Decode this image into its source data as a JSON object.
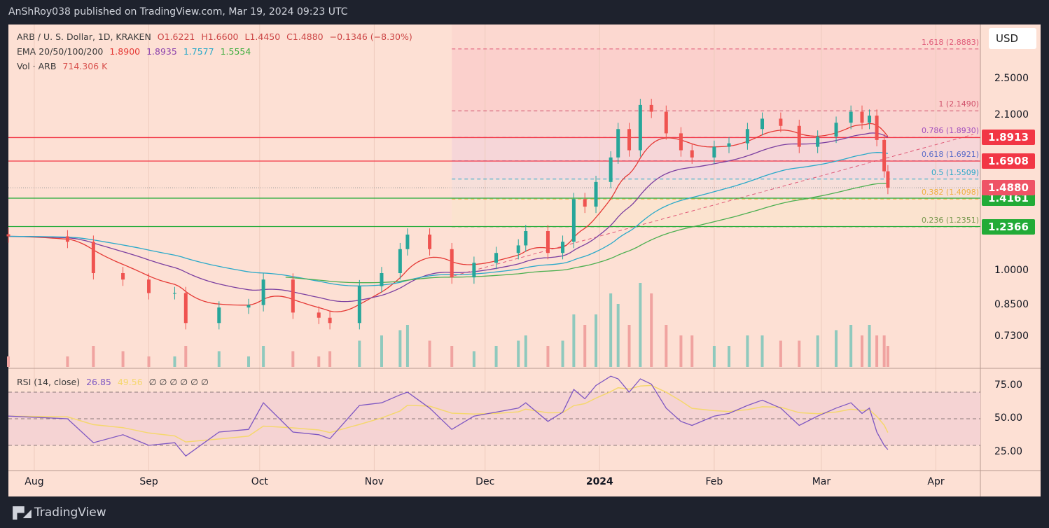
{
  "publisher": "AnShRoy038 published on TradingView.com, Mar 19, 2024 09:23 UTC",
  "legend": {
    "symbol": "ARB / U. S. Dollar, 1D, KRAKEN",
    "open": "O1.6221",
    "high": "H1.6600",
    "low": "L1.4450",
    "close": "C1.4880",
    "change": "−0.1346 (−8.30%)",
    "ema_label": "EMA 20/50/100/200",
    "ema20": "1.8900",
    "ema50": "1.8935",
    "ema100": "1.7577",
    "ema200": "1.5554",
    "vol_label": "Vol · ARB",
    "vol_value": "714.306 K",
    "rsi_label": "RSI (14, close)",
    "rsi_value": "26.85",
    "rsi_ma": "49.56",
    "rsi_extra": "∅ ∅ ∅ ∅ ∅ ∅"
  },
  "currency": "USD",
  "footer": {
    "logo": "TV",
    "brand": "TradingView"
  },
  "colors": {
    "up": "#26a69a",
    "down": "#ef5350",
    "ema20": "#e53935",
    "ema50": "#7b3fa0",
    "ema100": "#29a9c9",
    "ema200": "#4caf50",
    "rsi": "#7e57c2",
    "rsi_ma": "#f5d76e"
  },
  "chart_data": {
    "type": "candlestick",
    "scale": "log",
    "ylim": [
      0.66,
      3.1
    ],
    "yticks": [
      "2.5000",
      "2.1000",
      "1.0000",
      "0.8500",
      "0.7300"
    ],
    "ytick_values": [
      2.5,
      2.1,
      1.0,
      0.85,
      0.73
    ],
    "xticks": [
      "Aug",
      "Sep",
      "Oct",
      "Nov",
      "Dec",
      "2024",
      "Feb",
      "Mar",
      "Apr"
    ],
    "xtick_dates": [
      "2023-08-01",
      "2023-09-01",
      "2023-10-01",
      "2023-11-01",
      "2023-12-01",
      "2024-01-01",
      "2024-02-01",
      "2024-03-01",
      "2024-04-01"
    ],
    "dates": [
      "2023-07-25",
      "2023-08-10",
      "2023-08-17",
      "2023-08-25",
      "2023-09-01",
      "2023-09-08",
      "2023-09-11",
      "2023-09-20",
      "2023-09-28",
      "2023-10-02",
      "2023-10-10",
      "2023-10-17",
      "2023-10-20",
      "2023-10-28",
      "2023-11-03",
      "2023-11-08",
      "2023-11-10",
      "2023-11-16",
      "2023-11-22",
      "2023-11-28",
      "2023-12-04",
      "2023-12-10",
      "2023-12-12",
      "2023-12-18",
      "2023-12-22",
      "2023-12-25",
      "2023-12-28",
      "2023-12-31",
      "2024-01-04",
      "2024-01-06",
      "2024-01-09",
      "2024-01-12",
      "2024-01-15",
      "2024-01-19",
      "2024-01-23",
      "2024-01-26",
      "2024-02-01",
      "2024-02-05",
      "2024-02-10",
      "2024-02-14",
      "2024-02-19",
      "2024-02-24",
      "2024-02-29",
      "2024-03-05",
      "2024-03-09",
      "2024-03-12",
      "2024-03-14",
      "2024-03-16",
      "2024-03-18",
      "2024-03-19"
    ],
    "close": [
      1.18,
      1.15,
      0.99,
      0.96,
      0.9,
      0.9,
      0.78,
      0.84,
      0.85,
      0.96,
      0.82,
      0.8,
      0.78,
      0.93,
      0.99,
      1.11,
      1.19,
      1.11,
      0.97,
      1.04,
      1.09,
      1.13,
      1.21,
      1.09,
      1.15,
      1.41,
      1.36,
      1.53,
      1.72,
      1.97,
      1.78,
      2.21,
      2.14,
      1.93,
      1.78,
      1.72,
      1.81,
      1.84,
      1.97,
      2.07,
      2.0,
      1.81,
      1.9,
      2.03,
      2.14,
      2.03,
      2.1,
      1.87,
      1.61,
      1.488
    ],
    "volume": [
      1,
      1,
      2,
      1.5,
      1,
      1,
      2,
      1.5,
      1,
      2,
      1.5,
      1,
      1.5,
      2.5,
      3,
      3.5,
      4,
      2.5,
      2,
      1.5,
      2,
      2.5,
      3,
      2,
      2.5,
      5,
      4,
      5,
      7,
      6,
      4,
      8,
      7,
      4,
      3,
      3,
      2,
      2,
      3,
      3,
      2.5,
      2.5,
      3,
      3.5,
      4,
      3,
      4,
      3,
      3,
      2
    ],
    "rsi": [
      52,
      50,
      32,
      38,
      30,
      32,
      22,
      40,
      42,
      62,
      40,
      38,
      35,
      60,
      62,
      68,
      70,
      58,
      42,
      52,
      55,
      58,
      62,
      48,
      55,
      72,
      65,
      75,
      82,
      80,
      70,
      80,
      76,
      58,
      48,
      45,
      52,
      54,
      60,
      64,
      58,
      45,
      52,
      58,
      62,
      54,
      58,
      40,
      30,
      26.85
    ],
    "rsi_yticks": [
      "75.00",
      "50.00",
      "25.00"
    ],
    "horizontal_levels": [
      {
        "value": 1.8913,
        "label": "1.8913",
        "color": "#f23645"
      },
      {
        "value": 1.6908,
        "label": "1.6908",
        "color": "#f23645"
      },
      {
        "value": 1.4161,
        "label": "1.4161",
        "color": "#22ab37"
      },
      {
        "value": 1.2366,
        "label": "1.2366",
        "color": "#22ab37"
      }
    ],
    "last_price": {
      "value": 1.488,
      "label": "1.4880",
      "color": "#ef5366"
    },
    "fib_start_date": "2023-11-22",
    "fib_levels": [
      {
        "ratio": "1.618",
        "value": 2.8883,
        "label": "1.618 (2.8883)",
        "color": "#e05a78"
      },
      {
        "ratio": "1",
        "value": 2.149,
        "label": "1 (2.1490)",
        "color": "#d0506a"
      },
      {
        "ratio": "0.786",
        "value": 1.893,
        "label": "0.786 (1.8930)",
        "color": "#a34fbf"
      },
      {
        "ratio": "0.618",
        "value": 1.6921,
        "label": "0.618 (1.6921)",
        "color": "#5a6cc8"
      },
      {
        "ratio": "0.5",
        "value": 1.5509,
        "label": "0.5 (1.5509)",
        "color": "#2aa8c8"
      },
      {
        "ratio": "0.382",
        "value": 1.4098,
        "label": "0.382 (1.4098)",
        "color": "#f0b040"
      },
      {
        "ratio": "0.236",
        "value": 1.2351,
        "label": "0.236 (1.2351)",
        "color": "#7a9a50"
      }
    ]
  }
}
